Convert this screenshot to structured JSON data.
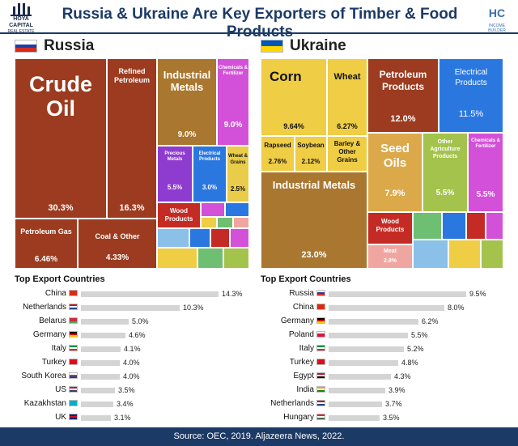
{
  "header": {
    "title": "Russia & Ukraine Are Key Exporters of Timber & Food Products",
    "logo_left_line1": "HOYA CAPITAL",
    "logo_left_line2": "REAL ESTATE",
    "logo_right_mark": "HC",
    "logo_right_sub": "INCOME BUILDER"
  },
  "footer": {
    "source": "Source: OEC, 2019. Aljazeera News, 2022."
  },
  "russia": {
    "name": "Russia",
    "flag_colors": [
      "#ffffff",
      "#1f3fa8",
      "#d52b1e"
    ],
    "treemap": [
      {
        "label": "Crude Oil",
        "pct": "30.3%",
        "color": "#9c3b1f"
      },
      {
        "label": "Refined Petroleum",
        "pct": "16.3%",
        "color": "#9c3b1f"
      },
      {
        "label": "Industrial Metals",
        "pct": "9.0%",
        "color": "#a9772f"
      },
      {
        "label": "Chemicals & Fertilizer",
        "pct": "9.0%",
        "color": "#d251d8"
      },
      {
        "label": "Precious Metals",
        "pct": "5.5%",
        "color": "#8e3ccf"
      },
      {
        "label": "Electrical Products",
        "pct": "3.0%",
        "color": "#2b77e0"
      },
      {
        "label": "Wheat & Grains",
        "pct": "2.5%",
        "color": "#e9cc4a"
      },
      {
        "label": "Petroleum Gas",
        "pct": "6.46%",
        "color": "#9c3b1f"
      },
      {
        "label": "Coal & Other",
        "pct": "4.33%",
        "color": "#9c3b1f"
      },
      {
        "label": "Wood Products",
        "pct": "",
        "color": "#c42b24"
      }
    ],
    "bars_title": "Top Export Countries",
    "bars": [
      {
        "country": "China",
        "value": 14.3,
        "label": "14.3%",
        "flag": [
          "#de2910",
          "#de2910",
          "#de2910"
        ]
      },
      {
        "country": "Netherlands",
        "value": 10.3,
        "label": "10.3%",
        "flag": [
          "#ae1c28",
          "#ffffff",
          "#21468b"
        ]
      },
      {
        "country": "Belarus",
        "value": 5.0,
        "label": "5.0%",
        "flag": [
          "#c8313e",
          "#c8313e",
          "#4aa657"
        ]
      },
      {
        "country": "Germany",
        "value": 4.6,
        "label": "4.6%",
        "flag": [
          "#000000",
          "#dd0000",
          "#ffce00"
        ]
      },
      {
        "country": "Italy",
        "value": 4.1,
        "label": "4.1%",
        "flag": [
          "#009246",
          "#ffffff",
          "#ce2b37"
        ]
      },
      {
        "country": "Turkey",
        "value": 4.0,
        "label": "4.0%",
        "flag": [
          "#e30a17",
          "#e30a17",
          "#e30a17"
        ]
      },
      {
        "country": "South Korea",
        "value": 4.0,
        "label": "4.0%",
        "flag": [
          "#ffffff",
          "#cd2e3a",
          "#0047a0"
        ]
      },
      {
        "country": "US",
        "value": 3.5,
        "label": "3.5%",
        "flag": [
          "#b22234",
          "#ffffff",
          "#3c3b6e"
        ]
      },
      {
        "country": "Kazakhstan",
        "value": 3.4,
        "label": "3.4%",
        "flag": [
          "#00afca",
          "#00afca",
          "#00afca"
        ]
      },
      {
        "country": "UK",
        "value": 3.1,
        "label": "3.1%",
        "flag": [
          "#012169",
          "#c8102e",
          "#012169"
        ]
      }
    ]
  },
  "ukraine": {
    "name": "Ukraine",
    "flag_colors": [
      "#0057b7",
      "#ffd700"
    ],
    "treemap": [
      {
        "label": "Corn",
        "pct": "9.64%",
        "color": "#efcd45"
      },
      {
        "label": "Wheat",
        "pct": "6.27%",
        "color": "#efcd45"
      },
      {
        "label": "Rapseed",
        "pct": "2.76%",
        "color": "#efcd45"
      },
      {
        "label": "Soybean",
        "pct": "2.12%",
        "color": "#efcd45"
      },
      {
        "label": "Barley & Other Grains",
        "pct": "",
        "color": "#efcd45"
      },
      {
        "label": "Industrial Metals",
        "pct": "23.0%",
        "color": "#a9772f"
      },
      {
        "label": "Petroleum Products",
        "pct": "12.0%",
        "color": "#9c3b1f"
      },
      {
        "label": "Electrical Products",
        "pct": "11.5%",
        "color": "#2b77e0"
      },
      {
        "label": "Seed Oils",
        "pct": "7.9%",
        "color": "#dca94a"
      },
      {
        "label": "Other Agriculture Products",
        "pct": "5.5%",
        "color": "#a4c34c"
      },
      {
        "label": "Chemicals & Fertilizer",
        "pct": "5.5%",
        "color": "#d251d8"
      },
      {
        "label": "Wood Products",
        "pct": "",
        "color": "#c42b24"
      },
      {
        "label": "Meat",
        "pct": "2.8%",
        "color": "#f0a6a0"
      }
    ],
    "bars_title": "Top Export Countries",
    "bars": [
      {
        "country": "Russia",
        "value": 9.5,
        "label": "9.5%",
        "flag": [
          "#ffffff",
          "#1f3fa8",
          "#d52b1e"
        ]
      },
      {
        "country": "China",
        "value": 8.0,
        "label": "8.0%",
        "flag": [
          "#de2910",
          "#de2910",
          "#de2910"
        ]
      },
      {
        "country": "Germany",
        "value": 6.2,
        "label": "6.2%",
        "flag": [
          "#000000",
          "#dd0000",
          "#ffce00"
        ]
      },
      {
        "country": "Poland",
        "value": 5.5,
        "label": "5.5%",
        "flag": [
          "#ffffff",
          "#dc143c",
          "#dc143c"
        ]
      },
      {
        "country": "Italy",
        "value": 5.2,
        "label": "5.2%",
        "flag": [
          "#009246",
          "#ffffff",
          "#ce2b37"
        ]
      },
      {
        "country": "Turkey",
        "value": 4.8,
        "label": "4.8%",
        "flag": [
          "#e30a17",
          "#e30a17",
          "#e30a17"
        ]
      },
      {
        "country": "Egypt",
        "value": 4.3,
        "label": "4.3%",
        "flag": [
          "#ce1126",
          "#ffffff",
          "#000000"
        ]
      },
      {
        "country": "India",
        "value": 3.9,
        "label": "3.9%",
        "flag": [
          "#ff9933",
          "#ffffff",
          "#138808"
        ]
      },
      {
        "country": "Netherlands",
        "value": 3.7,
        "label": "3.7%",
        "flag": [
          "#ae1c28",
          "#ffffff",
          "#21468b"
        ]
      },
      {
        "country": "Hungary",
        "value": 3.5,
        "label": "3.5%",
        "flag": [
          "#ce2939",
          "#ffffff",
          "#477050"
        ]
      }
    ]
  },
  "chart_data": [
    {
      "type": "treemap",
      "title": "Russia",
      "categories": [
        "Crude Oil",
        "Refined Petroleum",
        "Industrial Metals",
        "Chemicals & Fertilizer",
        "Precious Metals",
        "Electrical Products",
        "Wheat & Grains",
        "Petroleum Gas",
        "Coal & Other"
      ],
      "values": [
        30.3,
        16.3,
        9.0,
        9.0,
        5.5,
        3.0,
        2.5,
        6.46,
        4.33
      ]
    },
    {
      "type": "treemap",
      "title": "Ukraine",
      "categories": [
        "Industrial Metals",
        "Petroleum Products",
        "Electrical Products",
        "Corn",
        "Seed Oils",
        "Wheat",
        "Other Agriculture Products",
        "Chemicals & Fertilizer",
        "Meat",
        "Rapseed",
        "Soybean"
      ],
      "values": [
        23.0,
        12.0,
        11.5,
        9.64,
        7.9,
        6.27,
        5.5,
        5.5,
        2.8,
        2.76,
        2.12
      ]
    },
    {
      "type": "bar",
      "title": "Top Export Countries",
      "categories": [
        "China",
        "Netherlands",
        "Belarus",
        "Germany",
        "Italy",
        "Turkey",
        "South Korea",
        "US",
        "Kazakhstan",
        "UK"
      ],
      "values": [
        14.3,
        10.3,
        5.0,
        4.6,
        4.1,
        4.0,
        4.0,
        3.5,
        3.4,
        3.1
      ]
    },
    {
      "type": "bar",
      "title": "Top Export Countries",
      "categories": [
        "Russia",
        "China",
        "Germany",
        "Poland",
        "Italy",
        "Turkey",
        "Egypt",
        "India",
        "Netherlands",
        "Hungary"
      ],
      "values": [
        9.5,
        8.0,
        6.2,
        5.5,
        5.2,
        4.8,
        4.3,
        3.9,
        3.7,
        3.5
      ]
    }
  ]
}
